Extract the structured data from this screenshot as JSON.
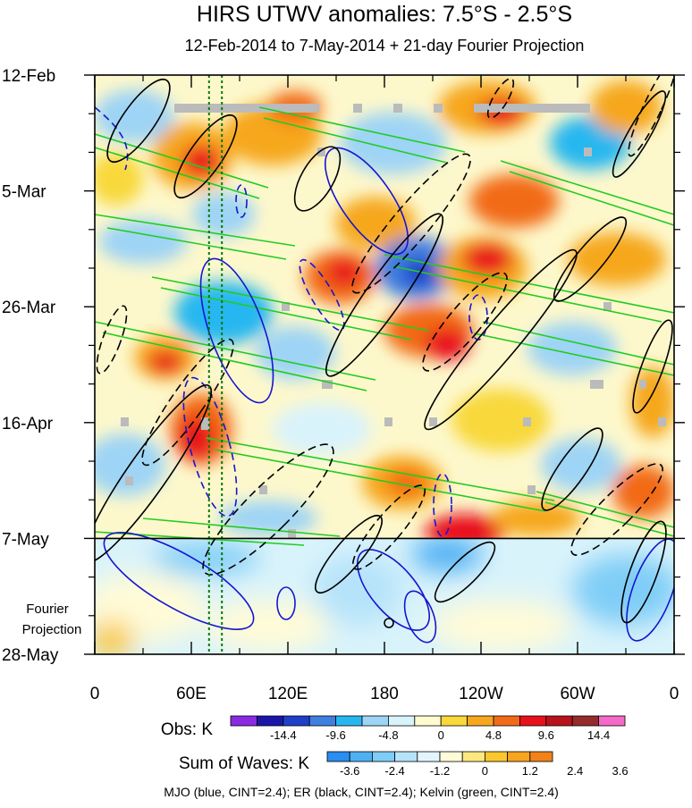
{
  "chart_data": {
    "type": "heatmap",
    "title": "HIRS UTWV anomalies: 7.5°S - 2.5°S",
    "subtitle": "12-Feb-2014 to 7-May-2014 + 21-day Fourier Projection",
    "x_ticks": [
      "0",
      "60E",
      "120E",
      "180",
      "120W",
      "60W",
      "0"
    ],
    "x_values": [
      0,
      60,
      120,
      180,
      240,
      300,
      360
    ],
    "x_range": [
      0,
      360
    ],
    "y_ticks": [
      "12-Feb",
      "5-Mar",
      "26-Mar",
      "16-Apr",
      "7-May",
      "28-May"
    ],
    "y_days": [
      0,
      21,
      42,
      63,
      84,
      105
    ],
    "y_range": [
      0,
      105
    ],
    "obs_end_day": 84,
    "projection_label": [
      "Fourier",
      "Projection"
    ],
    "reference_lon": [
      71,
      79
    ],
    "obs_colorbar": {
      "label": "Obs: K",
      "tick_labels": [
        "-14.4",
        "-9.6",
        "-4.8",
        "0",
        "4.8",
        "9.6",
        "14.4"
      ],
      "colors": [
        "#8a2be2",
        "#1a16a8",
        "#1f3fc9",
        "#3f7fe0",
        "#27b7f0",
        "#9ed4f5",
        "#d9f3fb",
        "#fffbd0",
        "#f8d83a",
        "#f6a71e",
        "#f26a19",
        "#e8101a",
        "#b8121c",
        "#952b2c",
        "#f56ac8"
      ]
    },
    "wave_colorbar": {
      "label": "Sum of Waves: K",
      "tick_labels": [
        "-3.6",
        "-2.4",
        "-1.2",
        "0",
        "1.2",
        "2.4",
        "3.6"
      ],
      "colors": [
        "#2a8df0",
        "#4fb0f4",
        "#7fcdf7",
        "#b6e3fa",
        "#e3f5fc",
        "#fffbd8",
        "#fde880",
        "#fbc72e",
        "#f7a41f",
        "#f28218"
      ]
    },
    "contours_note": "MJO (blue, CINT=2.4); ER (black, CINT=2.4); Kelvin (green, CINT=2.4)",
    "series": [
      {
        "name": "MJO",
        "color": "#1515d0"
      },
      {
        "name": "ER",
        "color": "#000000"
      },
      {
        "name": "Kelvin",
        "color": "#22cc22"
      }
    ]
  }
}
